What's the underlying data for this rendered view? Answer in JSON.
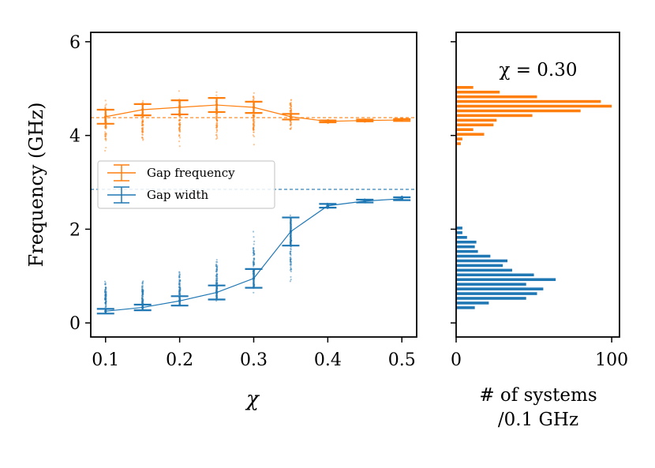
{
  "chart_data": [
    {
      "type": "line",
      "panel": "left",
      "xlabel": "χ",
      "ylabel": "Frequency (GHz)",
      "xlim": [
        0.08,
        0.52
      ],
      "ylim": [
        -0.3,
        6.2
      ],
      "xticks": [
        "0.1",
        "0.2",
        "0.3",
        "0.4",
        "0.5"
      ],
      "yticks": [
        "0",
        "2",
        "4",
        "6"
      ],
      "legend": {
        "position": "center-left",
        "entries": [
          "Gap frequency",
          "Gap width"
        ]
      },
      "x": [
        0.1,
        0.15,
        0.2,
        0.25,
        0.3,
        0.35,
        0.4,
        0.45,
        0.5
      ],
      "series": [
        {
          "name": "Gap frequency",
          "color": "#ff7f0e",
          "values": [
            4.4,
            4.55,
            4.6,
            4.65,
            4.6,
            4.4,
            4.3,
            4.32,
            4.33
          ],
          "err_lower": [
            0.15,
            0.12,
            0.15,
            0.15,
            0.12,
            0.06,
            0.02,
            0.02,
            0.02
          ],
          "err_upper": [
            0.15,
            0.12,
            0.15,
            0.15,
            0.12,
            0.06,
            0.02,
            0.02,
            0.02
          ],
          "scatter_range": [
            [
              3.5,
              5.0
            ],
            [
              3.7,
              4.95
            ],
            [
              3.7,
              5.0
            ],
            [
              3.8,
              5.0
            ],
            [
              3.7,
              5.05
            ],
            [
              4.0,
              4.9
            ],
            [
              4.25,
              4.35
            ],
            [
              4.28,
              4.36
            ],
            [
              4.3,
              4.37
            ]
          ],
          "reference_line": 4.38
        },
        {
          "name": "Gap width",
          "color": "#1f77b4",
          "values": [
            0.25,
            0.33,
            0.47,
            0.65,
            0.95,
            1.95,
            2.5,
            2.6,
            2.65
          ],
          "err_lower": [
            0.05,
            0.06,
            0.1,
            0.15,
            0.2,
            0.3,
            0.04,
            0.03,
            0.03
          ],
          "err_upper": [
            0.05,
            0.06,
            0.1,
            0.15,
            0.2,
            0.3,
            0.04,
            0.03,
            0.03
          ],
          "scatter_range": [
            [
              0.12,
              0.95
            ],
            [
              0.18,
              1.02
            ],
            [
              0.2,
              1.25
            ],
            [
              0.3,
              1.55
            ],
            [
              0.5,
              2.1
            ],
            [
              0.65,
              2.45
            ],
            [
              2.42,
              2.58
            ],
            [
              2.55,
              2.66
            ],
            [
              2.6,
              2.72
            ]
          ],
          "reference_line": 2.85
        }
      ]
    },
    {
      "type": "bar",
      "panel": "right",
      "orientation": "horizontal",
      "title": "χ = 0.30",
      "xlabel": "# of systems\n/0.1 GHz",
      "xlabel_lines": [
        "# of systems",
        "/0.1 GHz"
      ],
      "xlim": [
        0,
        105
      ],
      "xticks": [
        "0",
        "100"
      ],
      "ylim": [
        -0.3,
        6.2
      ],
      "bin_width": 0.1,
      "series": [
        {
          "name": "Gap frequency",
          "color": "#ff7f0e",
          "bin_starts": [
            3.8,
            3.9,
            4.0,
            4.1,
            4.2,
            4.3,
            4.4,
            4.5,
            4.6,
            4.7,
            4.8,
            4.9,
            5.0
          ],
          "counts": [
            3,
            4,
            18,
            11,
            24,
            26,
            49,
            80,
            100,
            93,
            52,
            28,
            11
          ]
        },
        {
          "name": "Gap width",
          "color": "#1f77b4",
          "bin_starts": [
            0.3,
            0.4,
            0.5,
            0.6,
            0.7,
            0.8,
            0.9,
            1.0,
            1.1,
            1.2,
            1.3,
            1.4,
            1.5,
            1.6,
            1.7,
            1.8,
            1.9,
            2.0
          ],
          "counts": [
            12,
            21,
            45,
            52,
            56,
            45,
            64,
            50,
            36,
            30,
            33,
            22,
            14,
            12,
            13,
            7,
            4,
            4
          ]
        }
      ]
    }
  ]
}
